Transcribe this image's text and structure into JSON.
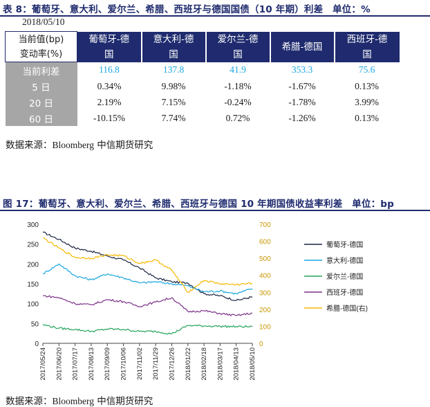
{
  "table_section": {
    "title": "表 8：葡萄牙、意大利、爱尔兰、希腊、西班牙与德国国债（10 年期）利差　单位：%",
    "date": "2018/05/10",
    "corner_label": [
      "当前值(bp)",
      "变动率(%)"
    ],
    "columns": [
      [
        "葡萄牙-德",
        "国"
      ],
      [
        "意大利-德",
        "国"
      ],
      [
        "爱尔兰-德",
        "国"
      ],
      [
        "希腊-德国"
      ],
      [
        "西班牙-德",
        "国"
      ]
    ],
    "rows": [
      {
        "label": "当前利差",
        "values": [
          "116.8",
          "137.8",
          "41.9",
          "353.3",
          "75.6"
        ]
      },
      {
        "label": "5 日",
        "values": [
          "0.34%",
          "9.98%",
          "-1.18%",
          "-1.67%",
          "0.13%"
        ]
      },
      {
        "label": "20 日",
        "values": [
          "2.19%",
          "7.15%",
          "-0.24%",
          "-1.78%",
          "3.99%"
        ]
      },
      {
        "label": "60 日",
        "values": [
          "-10.15%",
          "7.74%",
          "0.72%",
          "-1.26%",
          "0.13%"
        ]
      }
    ],
    "source_prefix": "数据来源：",
    "source_name": "Bloomberg",
    "source_suffix": "  中信期货研究"
  },
  "chart_section": {
    "title": "图 17：葡萄牙、意大利、爱尔兰、希腊、西班牙与德国 10 年期国债收益率利差　单位：bp",
    "source_prefix": "数据来源：",
    "source_name": "Bloomberg",
    "source_suffix": "  中信期货研究"
  },
  "chart_data": {
    "type": "line",
    "title": "",
    "x": [
      "2017/05/24",
      "2017/06/20",
      "2017/07/17",
      "2017/08/13",
      "2017/09/09",
      "2017/10/06",
      "2017/11/02",
      "2017/11/29",
      "2017/12/26",
      "2018/01/22",
      "2018/02/18",
      "2018/03/17",
      "2018/04/13",
      "2018/05/10"
    ],
    "y_left": {
      "min": 0,
      "max": 300,
      "ticks": [
        0,
        50,
        100,
        150,
        200,
        250,
        300
      ]
    },
    "y_right": {
      "min": 0,
      "max": 700,
      "ticks": [
        0,
        100,
        200,
        300,
        400,
        500,
        600,
        700
      ]
    },
    "legend_position": "right",
    "series": [
      {
        "name": "葡萄牙-德国",
        "axis": "left",
        "color": "#1c2541",
        "values": [
          280,
          262,
          240,
          232,
          220,
          210,
          190,
          165,
          155,
          152,
          125,
          120,
          108,
          117
        ]
      },
      {
        "name": "意大利-德国",
        "axis": "left",
        "color": "#1aa6e0",
        "values": [
          175,
          200,
          170,
          160,
          175,
          165,
          152,
          155,
          150,
          145,
          130,
          132,
          125,
          138
        ]
      },
      {
        "name": "爱尔兰-德国",
        "axis": "left",
        "color": "#22a35a",
        "values": [
          47,
          38,
          35,
          30,
          36,
          35,
          30,
          30,
          24,
          45,
          44,
          43,
          42,
          42
        ]
      },
      {
        "name": "西班牙-德国",
        "axis": "left",
        "color": "#7a2f87",
        "values": [
          120,
          115,
          100,
          97,
          110,
          105,
          93,
          104,
          115,
          80,
          82,
          75,
          70,
          76
        ]
      },
      {
        "name": "希腊-德国(右)",
        "axis": "right",
        "color": "#f5b800",
        "values": [
          620,
          560,
          505,
          500,
          520,
          515,
          470,
          490,
          430,
          300,
          370,
          350,
          345,
          353
        ]
      }
    ]
  }
}
